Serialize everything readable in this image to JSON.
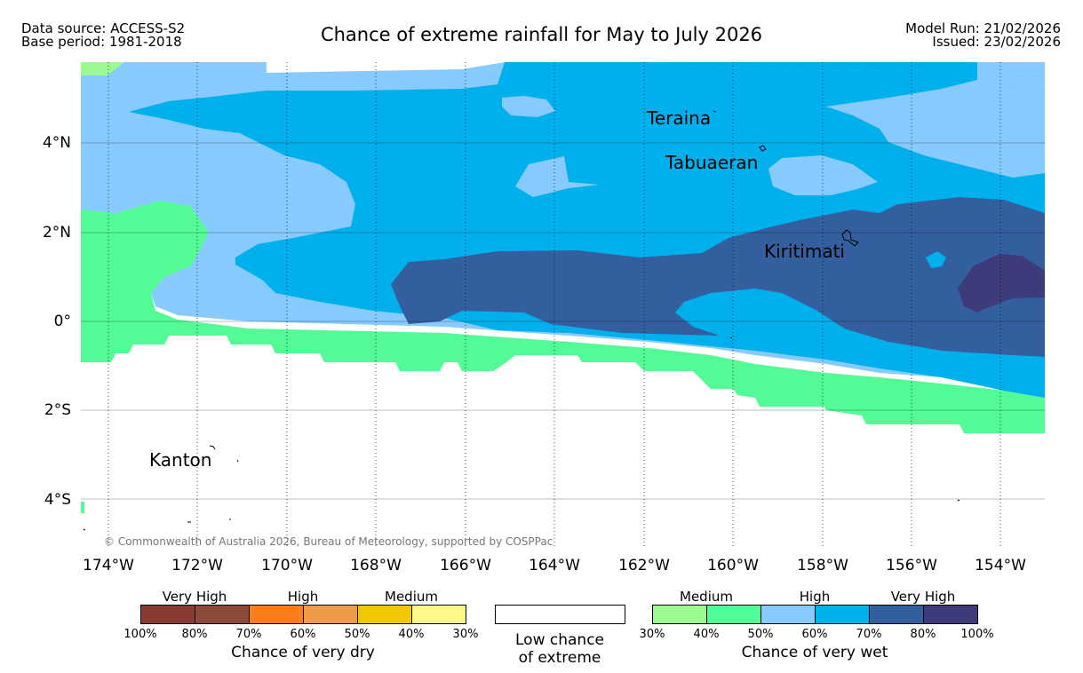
{
  "header": {
    "data_source": "Data source: ACCESS-S2",
    "base_period": "Base period: 1981-2018",
    "title": "Chance of extreme rainfall for May to July 2026",
    "model_run": "Model Run: 21/02/2026",
    "issued": "Issued: 23/02/2026"
  },
  "map": {
    "y_ticks": [
      "4°N",
      "2°N",
      "0°",
      "2°S",
      "4°S"
    ],
    "x_ticks": [
      "174°W",
      "172°W",
      "170°W",
      "168°W",
      "166°W",
      "164°W",
      "162°W",
      "160°W",
      "158°W",
      "156°W",
      "154°W"
    ],
    "places": {
      "teraina": "Teraina",
      "tabuaeran": "Tabuaeran",
      "kiritimati": "Kiritimati",
      "kanton": "Kanton"
    },
    "copyright": "© Commonwealth of Australia 2026, Bureau of Meteorology, supported by COSPPac"
  },
  "legend": {
    "dry": {
      "groups": [
        "Very High",
        "High",
        "Medium"
      ],
      "ticks": [
        "100%",
        "80%",
        "70%",
        "60%",
        "50%",
        "40%",
        "30%"
      ],
      "colors": [
        "#8b3a32",
        "#8b4a3a",
        "#fb7d22",
        "#ef9a48",
        "#f0c800",
        "#fff78a"
      ],
      "caption": "Chance of very dry"
    },
    "low": {
      "line1": "Low chance",
      "line2": "of extreme"
    },
    "wet": {
      "groups": [
        "Medium",
        "High",
        "Very High"
      ],
      "ticks": [
        "30%",
        "40%",
        "50%",
        "60%",
        "70%",
        "80%",
        "100%"
      ],
      "colors": [
        "#9cfb8e",
        "#52fb96",
        "#86caff",
        "#00b0ec",
        "#345f9f",
        "#3d3b79"
      ],
      "caption": "Chance of very wet"
    }
  }
}
